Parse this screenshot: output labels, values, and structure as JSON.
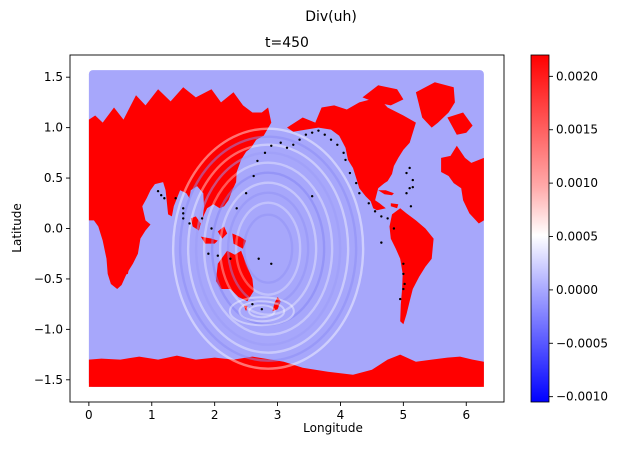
{
  "suptitle": "Div(uh)",
  "chart_data": {
    "type": "heatmap",
    "title": "t=450",
    "xlabel": "Longitude",
    "ylabel": "Latitude",
    "xlim": [
      -0.3,
      6.6
    ],
    "ylim": [
      -1.72,
      1.72
    ],
    "x_ticks": [
      0,
      1,
      2,
      3,
      4,
      5,
      6
    ],
    "x_tick_labels": [
      "0",
      "1",
      "2",
      "3",
      "4",
      "5",
      "6"
    ],
    "y_ticks": [
      1.5,
      1.0,
      0.5,
      0.0,
      -0.5,
      -1.0,
      -1.5
    ],
    "y_tick_labels": [
      "1.5",
      "1.0",
      "0.5",
      "0.0",
      "−0.5",
      "−1.0",
      "−1.5"
    ],
    "data_extent": {
      "lon": [
        0,
        6.28
      ],
      "lat": [
        -1.57,
        1.57
      ]
    },
    "background_value": 0.0,
    "land_value": 0.0022,
    "colormap": "bwr",
    "grid": false,
    "colorbar": {
      "range": [
        -0.00105,
        0.0022
      ],
      "ticks": [
        0.002,
        0.0015,
        0.001,
        0.0005,
        0.0,
        -0.0005,
        -0.001
      ],
      "tick_labels": [
        "0.0020",
        "0.0015",
        "0.0010",
        "0.0005",
        "0.0000",
        "−0.0005",
        "−0.0010"
      ]
    },
    "colors": {
      "low": "#0000ff",
      "mid": "#ffffff",
      "high": "#ff0000",
      "ocean": "#a7a7fb",
      "land": "#ff0000",
      "station": "#000000"
    },
    "stations": [
      [
        1.1,
        0.37
      ],
      [
        1.15,
        0.33
      ],
      [
        1.2,
        0.3
      ],
      [
        1.38,
        0.3
      ],
      [
        1.5,
        0.2
      ],
      [
        1.5,
        0.15
      ],
      [
        1.5,
        0.1
      ],
      [
        1.6,
        0.05
      ],
      [
        1.8,
        0.1
      ],
      [
        1.95,
        0.0
      ],
      [
        1.9,
        -0.25
      ],
      [
        2.05,
        -0.27
      ],
      [
        2.25,
        -0.3
      ],
      [
        2.35,
        0.2
      ],
      [
        2.5,
        0.35
      ],
      [
        2.62,
        0.52
      ],
      [
        2.68,
        0.67
      ],
      [
        2.8,
        0.75
      ],
      [
        2.9,
        0.82
      ],
      [
        3.05,
        0.85
      ],
      [
        3.15,
        0.8
      ],
      [
        3.25,
        0.83
      ],
      [
        3.35,
        0.88
      ],
      [
        3.45,
        0.93
      ],
      [
        3.55,
        0.95
      ],
      [
        3.65,
        0.97
      ],
      [
        3.75,
        0.93
      ],
      [
        3.85,
        0.88
      ],
      [
        3.95,
        0.83
      ],
      [
        4.05,
        0.75
      ],
      [
        4.08,
        0.68
      ],
      [
        3.55,
        0.32
      ],
      [
        4.15,
        0.55
      ],
      [
        4.25,
        0.45
      ],
      [
        4.3,
        0.35
      ],
      [
        4.45,
        0.25
      ],
      [
        4.55,
        0.17
      ],
      [
        4.65,
        0.12
      ],
      [
        4.75,
        0.1
      ],
      [
        4.85,
        0.0
      ],
      [
        4.65,
        -0.14
      ],
      [
        5.0,
        -0.35
      ],
      [
        5.0,
        -0.45
      ],
      [
        5.02,
        -0.55
      ],
      [
        5.0,
        -0.6
      ],
      [
        4.95,
        -0.7
      ],
      [
        5.05,
        0.55
      ],
      [
        5.1,
        0.6
      ],
      [
        5.15,
        0.48
      ],
      [
        5.1,
        0.4
      ],
      [
        5.15,
        0.41
      ],
      [
        5.05,
        0.35
      ],
      [
        5.12,
        0.22
      ],
      [
        2.9,
        -0.35
      ],
      [
        2.7,
        -0.3
      ],
      [
        2.6,
        -0.75
      ],
      [
        2.75,
        -0.8
      ]
    ],
    "land_polygons": [
      [
        [
          0,
          1.08
        ],
        [
          0.1,
          1.12
        ],
        [
          0.22,
          1.05
        ],
        [
          0.4,
          1.2
        ],
        [
          0.55,
          1.08
        ],
        [
          0.75,
          1.32
        ],
        [
          0.9,
          1.22
        ],
        [
          1.1,
          1.38
        ],
        [
          1.3,
          1.26
        ],
        [
          1.5,
          1.4
        ],
        [
          1.7,
          1.3
        ],
        [
          1.95,
          1.38
        ],
        [
          2.1,
          1.25
        ],
        [
          2.3,
          1.35
        ],
        [
          2.45,
          1.22
        ],
        [
          2.6,
          1.15
        ],
        [
          2.75,
          1.15
        ],
        [
          2.85,
          1.2
        ],
        [
          2.9,
          1.05
        ],
        [
          2.78,
          0.92
        ],
        [
          2.66,
          0.88
        ],
        [
          2.58,
          0.8
        ],
        [
          2.5,
          0.76
        ],
        [
          2.42,
          0.68
        ],
        [
          2.35,
          0.56
        ],
        [
          2.34,
          0.46
        ],
        [
          2.28,
          0.38
        ],
        [
          2.22,
          0.28
        ],
        [
          2.15,
          0.22
        ],
        [
          2.08,
          0.2
        ],
        [
          1.98,
          0.24
        ],
        [
          1.88,
          0.2
        ],
        [
          1.82,
          0.12
        ],
        [
          1.8,
          0.05
        ],
        [
          1.83,
          0.22
        ],
        [
          1.82,
          0.35
        ],
        [
          1.72,
          0.42
        ],
        [
          1.62,
          0.38
        ],
        [
          1.6,
          0.3
        ],
        [
          1.55,
          0.35
        ],
        [
          1.45,
          0.38
        ],
        [
          1.35,
          0.22
        ],
        [
          1.32,
          0.12
        ],
        [
          1.26,
          0.14
        ],
        [
          1.22,
          0.38
        ],
        [
          1.18,
          0.46
        ],
        [
          1.05,
          0.44
        ],
        [
          0.98,
          0.38
        ],
        [
          0.92,
          0.3
        ],
        [
          0.85,
          0.22
        ],
        [
          0.9,
          0.08
        ],
        [
          0.98,
          0.04
        ],
        [
          0.9,
          -0.02
        ],
        [
          0.82,
          -0.1
        ],
        [
          0.78,
          -0.25
        ],
        [
          0.7,
          -0.35
        ],
        [
          0.6,
          -0.45
        ],
        [
          0.52,
          -0.56
        ],
        [
          0.45,
          -0.6
        ],
        [
          0.35,
          -0.55
        ],
        [
          0.3,
          -0.45
        ],
        [
          0.28,
          -0.3
        ],
        [
          0.22,
          -0.12
        ],
        [
          0.15,
          0.02
        ],
        [
          0.08,
          0.08
        ],
        [
          0,
          0.08
        ]
      ],
      [
        [
          0.02,
          0.45
        ],
        [
          0.05,
          0.6
        ],
        [
          0.12,
          0.58
        ],
        [
          0.18,
          0.72
        ],
        [
          0.35,
          0.8
        ],
        [
          0.45,
          0.62
        ],
        [
          0.52,
          0.55
        ],
        [
          0.58,
          0.45
        ],
        [
          0.5,
          0.42
        ],
        [
          0.38,
          0.48
        ],
        [
          0.25,
          0.42
        ],
        [
          0.12,
          0.35
        ]
      ],
      [
        [
          0.55,
          -0.35
        ],
        [
          0.62,
          -0.25
        ],
        [
          0.66,
          -0.32
        ],
        [
          0.62,
          -0.45
        ],
        [
          0.57,
          -0.46
        ]
      ],
      [
        [
          1.62,
          0.1
        ],
        [
          1.7,
          0.12
        ],
        [
          1.78,
          0.05
        ],
        [
          1.75,
          -0.02
        ],
        [
          1.65,
          0.02
        ]
      ],
      [
        [
          1.78,
          -0.08
        ],
        [
          1.95,
          -0.1
        ],
        [
          2.05,
          -0.12
        ],
        [
          2.0,
          -0.15
        ],
        [
          1.85,
          -0.15
        ]
      ],
      [
        [
          2.05,
          -0.03
        ],
        [
          2.15,
          0.02
        ],
        [
          2.2,
          -0.05
        ],
        [
          2.12,
          -0.1
        ]
      ],
      [
        [
          2.28,
          -0.05
        ],
        [
          2.4,
          -0.08
        ],
        [
          2.5,
          -0.12
        ],
        [
          2.45,
          -0.2
        ],
        [
          2.3,
          -0.15
        ]
      ],
      [
        [
          2.05,
          -0.35
        ],
        [
          2.2,
          -0.22
        ],
        [
          2.32,
          -0.26
        ],
        [
          2.42,
          -0.22
        ],
        [
          2.5,
          -0.35
        ],
        [
          2.6,
          -0.5
        ],
        [
          2.62,
          -0.62
        ],
        [
          2.52,
          -0.72
        ],
        [
          2.38,
          -0.68
        ],
        [
          2.25,
          -0.6
        ],
        [
          2.1,
          -0.6
        ],
        [
          2.02,
          -0.52
        ]
      ],
      [
        [
          2.46,
          -0.76
        ],
        [
          2.52,
          -0.77
        ],
        [
          2.5,
          -0.82
        ]
      ],
      [
        [
          3.0,
          -0.68
        ],
        [
          3.05,
          -0.72
        ],
        [
          3.0,
          -0.8
        ],
        [
          2.92,
          -0.82
        ],
        [
          2.95,
          -0.74
        ]
      ],
      [
        [
          3.15,
          1.0
        ],
        [
          3.4,
          1.1
        ],
        [
          3.6,
          1.05
        ],
        [
          3.7,
          1.2
        ],
        [
          3.9,
          1.22
        ],
        [
          4.1,
          1.18
        ],
        [
          4.3,
          1.25
        ],
        [
          4.6,
          1.3
        ],
        [
          4.75,
          1.2
        ],
        [
          5.0,
          1.12
        ],
        [
          5.2,
          1.05
        ],
        [
          5.1,
          0.85
        ],
        [
          5.0,
          0.78
        ],
        [
          4.92,
          0.7
        ],
        [
          4.85,
          0.62
        ],
        [
          4.82,
          0.54
        ],
        [
          4.75,
          0.47
        ],
        [
          4.7,
          0.45
        ],
        [
          4.6,
          0.4
        ],
        [
          4.55,
          0.28
        ],
        [
          4.62,
          0.25
        ],
        [
          4.72,
          0.2
        ],
        [
          4.58,
          0.18
        ],
        [
          4.52,
          0.2
        ],
        [
          4.48,
          0.27
        ],
        [
          4.4,
          0.32
        ],
        [
          4.3,
          0.4
        ],
        [
          4.25,
          0.5
        ],
        [
          4.2,
          0.6
        ],
        [
          4.12,
          0.68
        ],
        [
          4.08,
          0.8
        ],
        [
          3.98,
          0.92
        ],
        [
          3.85,
          0.98
        ],
        [
          3.65,
          1.0
        ],
        [
          3.45,
          0.98
        ],
        [
          3.25,
          0.96
        ]
      ],
      [
        [
          4.35,
          1.3
        ],
        [
          4.6,
          1.42
        ],
        [
          4.9,
          1.38
        ],
        [
          5.0,
          1.28
        ],
        [
          4.8,
          1.22
        ],
        [
          4.55,
          1.25
        ]
      ],
      [
        [
          5.2,
          1.35
        ],
        [
          5.5,
          1.45
        ],
        [
          5.8,
          1.4
        ],
        [
          5.82,
          1.25
        ],
        [
          5.72,
          1.15
        ],
        [
          5.55,
          1.05
        ],
        [
          5.45,
          1.0
        ],
        [
          5.3,
          1.1
        ]
      ],
      [
        [
          4.6,
          0.38
        ],
        [
          4.72,
          0.38
        ],
        [
          4.85,
          0.35
        ],
        [
          4.82,
          0.33
        ],
        [
          4.7,
          0.34
        ]
      ],
      [
        [
          4.8,
          0.25
        ],
        [
          4.92,
          0.24
        ],
        [
          4.9,
          0.2
        ],
        [
          4.8,
          0.22
        ]
      ],
      [
        [
          4.82,
          0.14
        ],
        [
          4.95,
          0.2
        ],
        [
          5.05,
          0.15
        ],
        [
          5.2,
          0.08
        ],
        [
          5.35,
          0.0
        ],
        [
          5.48,
          -0.1
        ],
        [
          5.45,
          -0.3
        ],
        [
          5.35,
          -0.38
        ],
        [
          5.25,
          -0.48
        ],
        [
          5.15,
          -0.6
        ],
        [
          5.1,
          -0.72
        ],
        [
          5.05,
          -0.85
        ],
        [
          5.0,
          -0.95
        ],
        [
          4.95,
          -0.92
        ],
        [
          4.96,
          -0.75
        ],
        [
          4.98,
          -0.6
        ],
        [
          4.99,
          -0.45
        ],
        [
          4.95,
          -0.3
        ],
        [
          4.88,
          -0.2
        ],
        [
          4.8,
          -0.1
        ],
        [
          4.78,
          0.02
        ]
      ],
      [
        [
          5.7,
          1.1
        ],
        [
          5.95,
          1.15
        ],
        [
          6.1,
          1.02
        ],
        [
          6.0,
          0.95
        ],
        [
          5.85,
          0.93
        ]
      ],
      [
        [
          5.6,
          0.7
        ],
        [
          5.75,
          0.72
        ],
        [
          5.85,
          0.82
        ],
        [
          5.98,
          0.7
        ],
        [
          6.08,
          0.65
        ],
        [
          6.28,
          0.7
        ],
        [
          6.28,
          0.08
        ],
        [
          6.2,
          0.05
        ],
        [
          6.05,
          0.15
        ],
        [
          5.95,
          0.28
        ],
        [
          5.92,
          0.4
        ],
        [
          5.8,
          0.45
        ],
        [
          5.72,
          0.52
        ],
        [
          5.6,
          0.56
        ]
      ],
      [
        [
          0,
          -1.57
        ],
        [
          6.28,
          -1.57
        ],
        [
          6.28,
          -1.32
        ],
        [
          6.1,
          -1.3
        ],
        [
          5.9,
          -1.27
        ],
        [
          5.7,
          -1.28
        ],
        [
          5.45,
          -1.3
        ],
        [
          5.2,
          -1.32
        ],
        [
          4.95,
          -1.25
        ],
        [
          4.75,
          -1.3
        ],
        [
          4.5,
          -1.4
        ],
        [
          4.2,
          -1.45
        ],
        [
          3.8,
          -1.42
        ],
        [
          3.4,
          -1.38
        ],
        [
          3.1,
          -1.32
        ],
        [
          2.9,
          -1.3
        ],
        [
          2.6,
          -1.27
        ],
        [
          2.3,
          -1.3
        ],
        [
          2.0,
          -1.28
        ],
        [
          1.7,
          -1.3
        ],
        [
          1.4,
          -1.26
        ],
        [
          1.1,
          -1.3
        ],
        [
          0.8,
          -1.27
        ],
        [
          0.5,
          -1.3
        ],
        [
          0.2,
          -1.29
        ],
        [
          0,
          -1.3
        ]
      ]
    ]
  }
}
